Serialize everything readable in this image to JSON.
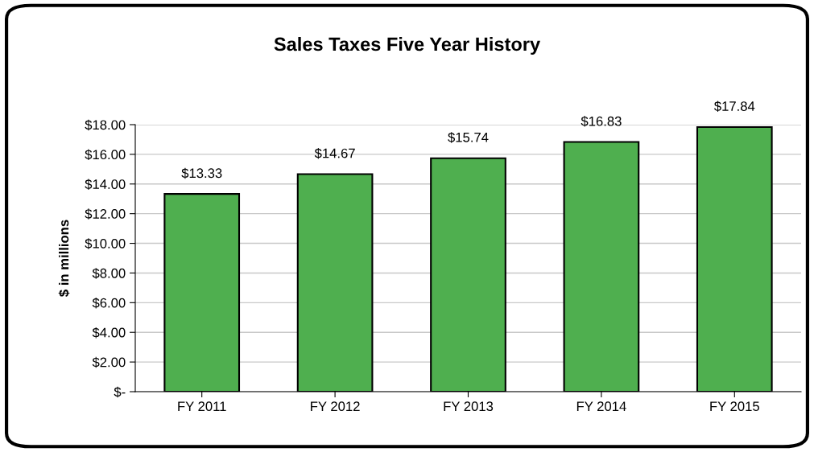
{
  "chart_data": {
    "type": "bar",
    "title": "Sales Taxes Five Year History",
    "ylabel": "$ in millions",
    "categories": [
      "FY 2011",
      "FY 2012",
      "FY 2013",
      "FY 2014",
      "FY 2015"
    ],
    "values": [
      13.33,
      14.67,
      15.74,
      16.83,
      17.84
    ],
    "value_labels": [
      "$13.33",
      "$14.67",
      "$15.74",
      "$16.83",
      "$17.84"
    ],
    "color": "#4faf4f",
    "ylim": [
      0,
      18
    ],
    "yticks": [
      {
        "value": 0,
        "label": "$-"
      },
      {
        "value": 2,
        "label": "$2.00"
      },
      {
        "value": 4,
        "label": "$4.00"
      },
      {
        "value": 6,
        "label": "$6.00"
      },
      {
        "value": 8,
        "label": "$8.00"
      },
      {
        "value": 10,
        "label": "$10.00"
      },
      {
        "value": 12,
        "label": "$12.00"
      },
      {
        "value": 14,
        "label": "$14.00"
      },
      {
        "value": 16,
        "label": "$16.00"
      },
      {
        "value": 18,
        "label": "$18.00"
      }
    ],
    "grid": "y"
  }
}
